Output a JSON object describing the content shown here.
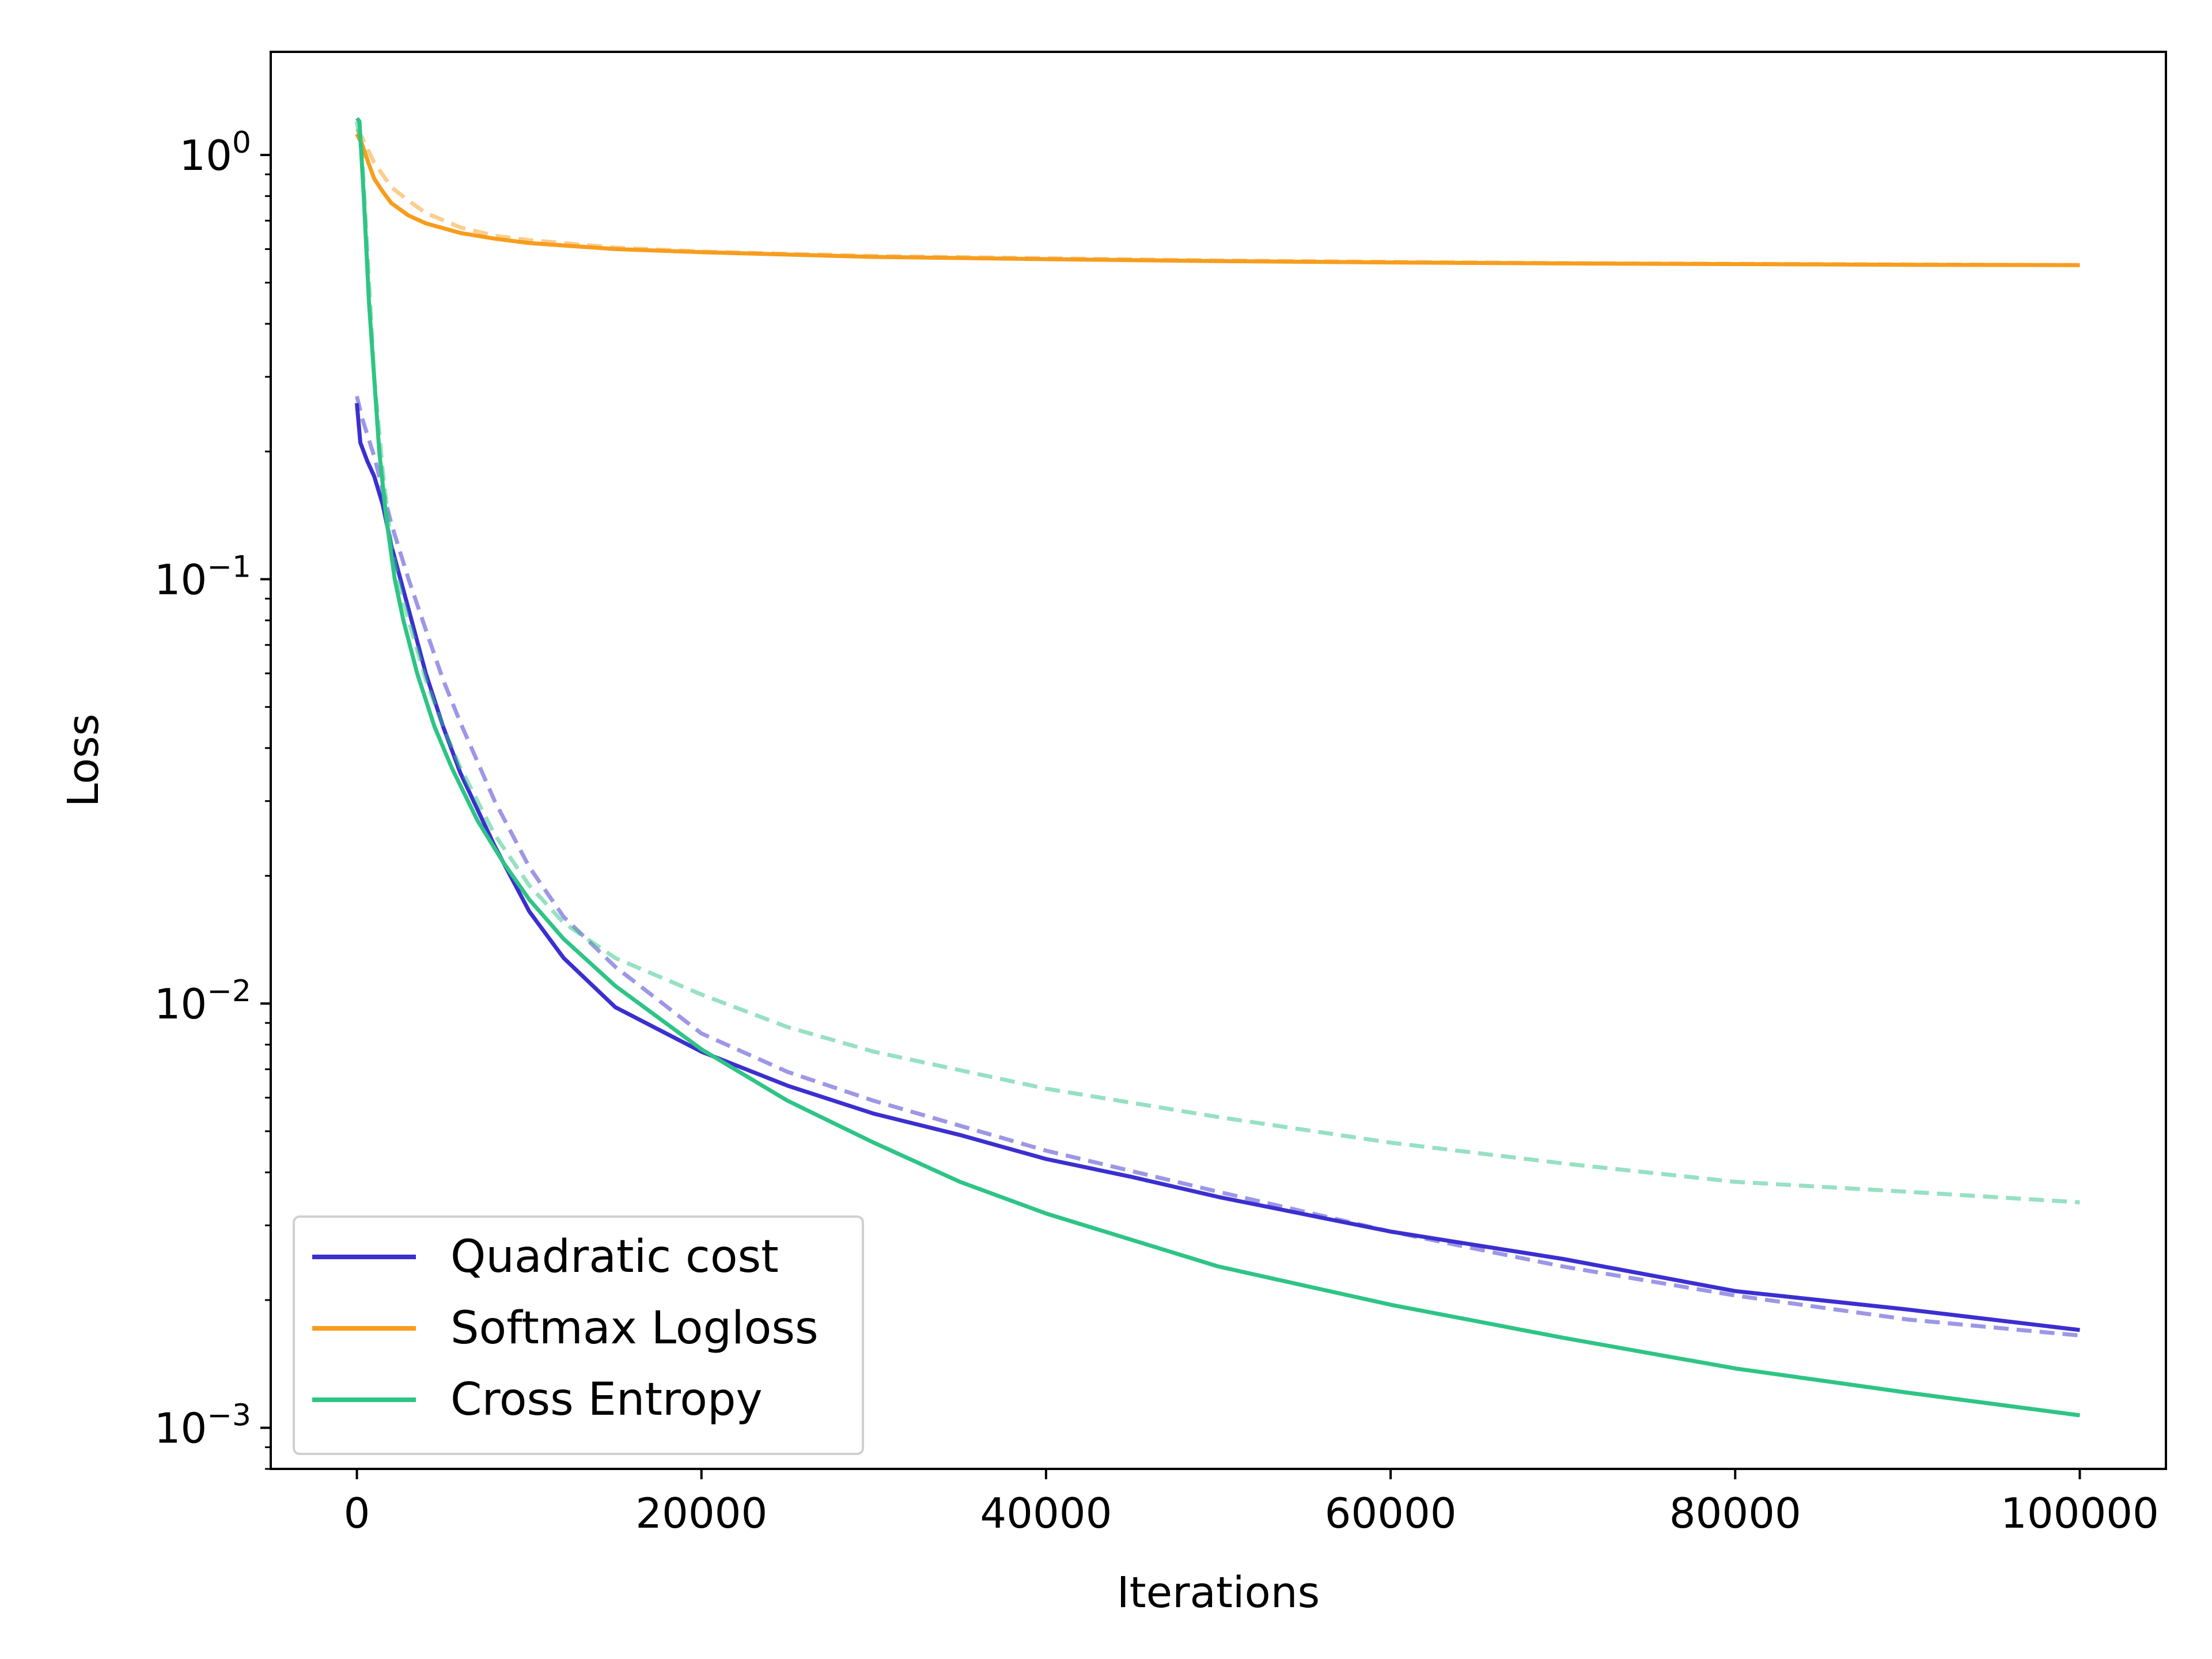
{
  "chart_data": {
    "type": "line",
    "xlabel": "Iterations",
    "ylabel": "Loss",
    "yscale": "log",
    "xlim": [
      -5000,
      105000
    ],
    "ylim": [
      0.0008,
      1.75
    ],
    "x_ticks": [
      0,
      20000,
      40000,
      60000,
      80000,
      100000
    ],
    "x_tick_labels": [
      "0",
      "20000",
      "40000",
      "60000",
      "80000",
      "100000"
    ],
    "y_ticks": [
      {
        "value": 1,
        "base": "10",
        "exp": "0"
      },
      {
        "value": 0.1,
        "base": "10",
        "exp": "−1"
      },
      {
        "value": 0.01,
        "base": "10",
        "exp": "−2"
      },
      {
        "value": 0.001,
        "base": "10",
        "exp": "−3"
      }
    ],
    "grid": false,
    "legend_position": "lower-left",
    "colors": {
      "quadratic": "#3c2fd0",
      "softmax": "#f79d1e",
      "cross_entropy": "#2ec485"
    },
    "series": [
      {
        "name": "Quadratic cost",
        "color": "#3c2fd0",
        "style": "solid",
        "in_legend": true,
        "x": [
          0,
          200,
          600,
          1000,
          1500,
          2000,
          3000,
          4000,
          5000,
          6000,
          8000,
          10000,
          12000,
          15000,
          20000,
          25000,
          30000,
          35000,
          40000,
          45000,
          50000,
          60000,
          70000,
          80000,
          90000,
          100000
        ],
        "y": [
          0.26,
          0.21,
          0.19,
          0.175,
          0.15,
          0.12,
          0.085,
          0.06,
          0.045,
          0.035,
          0.0235,
          0.0165,
          0.0128,
          0.0098,
          0.0077,
          0.0064,
          0.0055,
          0.0049,
          0.0043,
          0.0039,
          0.0035,
          0.0029,
          0.0025,
          0.0021,
          0.0019,
          0.0017
        ]
      },
      {
        "name": "",
        "color": "#3c2fd0",
        "style": "dashed",
        "opacity": 0.5,
        "in_legend": false,
        "x": [
          0,
          300,
          1000,
          2000,
          3000,
          4000,
          5000,
          6000,
          8000,
          10000,
          12000,
          15000,
          20000,
          25000,
          30000,
          40000,
          50000,
          60000,
          70000,
          80000,
          90000,
          100000
        ],
        "y": [
          0.27,
          0.24,
          0.195,
          0.135,
          0.1,
          0.076,
          0.058,
          0.046,
          0.03,
          0.021,
          0.016,
          0.0122,
          0.0085,
          0.0069,
          0.0059,
          0.0045,
          0.0036,
          0.0029,
          0.0024,
          0.00205,
          0.0018,
          0.00165
        ]
      },
      {
        "name": "Softmax Logloss",
        "color": "#f79d1e",
        "style": "solid",
        "in_legend": true,
        "x": [
          0,
          300,
          700,
          1000,
          1500,
          2000,
          3000,
          4000,
          6000,
          8000,
          10000,
          15000,
          20000,
          30000,
          40000,
          50000,
          60000,
          70000,
          80000,
          90000,
          100000
        ],
        "y": [
          1.12,
          1.06,
          0.95,
          0.88,
          0.82,
          0.77,
          0.72,
          0.69,
          0.655,
          0.635,
          0.62,
          0.6,
          0.59,
          0.575,
          0.568,
          0.562,
          0.558,
          0.555,
          0.553,
          0.551,
          0.55
        ]
      },
      {
        "name": "",
        "color": "#f79d1e",
        "style": "dashed",
        "opacity": 0.5,
        "in_legend": false,
        "x": [
          0,
          300,
          1000,
          2000,
          3000,
          4000,
          6000,
          8000,
          10000,
          15000,
          20000,
          30000,
          50000,
          70000,
          100000
        ],
        "y": [
          1.15,
          1.1,
          0.96,
          0.84,
          0.78,
          0.73,
          0.675,
          0.645,
          0.63,
          0.605,
          0.592,
          0.578,
          0.564,
          0.556,
          0.55
        ]
      },
      {
        "name": "Cross Entropy",
        "color": "#2ec485",
        "style": "solid",
        "in_legend": true,
        "x": [
          0,
          150,
          400,
          700,
          1000,
          1300,
          1700,
          2200,
          2700,
          3500,
          4500,
          5500,
          7000,
          8500,
          10000,
          12000,
          15000,
          20000,
          25000,
          30000,
          35000,
          40000,
          50000,
          60000,
          70000,
          80000,
          90000,
          100000
        ],
        "y": [
          1.22,
          1.2,
          0.8,
          0.45,
          0.3,
          0.2,
          0.14,
          0.1,
          0.08,
          0.06,
          0.045,
          0.036,
          0.027,
          0.0215,
          0.0176,
          0.0142,
          0.011,
          0.0078,
          0.0059,
          0.0047,
          0.0038,
          0.0032,
          0.0024,
          0.00195,
          0.00163,
          0.00138,
          0.00121,
          0.00107
        ]
      },
      {
        "name": "",
        "color": "#2ec485",
        "style": "dashed",
        "opacity": 0.5,
        "in_legend": false,
        "x": [
          0,
          300,
          600,
          1000,
          1500,
          2000,
          2500,
          3000,
          4000,
          5000,
          6000,
          8000,
          10000,
          12000,
          15000,
          20000,
          25000,
          30000,
          40000,
          50000,
          60000,
          70000,
          80000,
          90000,
          100000
        ],
        "y": [
          1.2,
          1.0,
          0.6,
          0.3,
          0.18,
          0.12,
          0.095,
          0.08,
          0.058,
          0.045,
          0.036,
          0.025,
          0.019,
          0.0155,
          0.0128,
          0.0105,
          0.0088,
          0.0077,
          0.0063,
          0.0054,
          0.0047,
          0.0042,
          0.0038,
          0.0036,
          0.0034
        ]
      }
    ]
  }
}
